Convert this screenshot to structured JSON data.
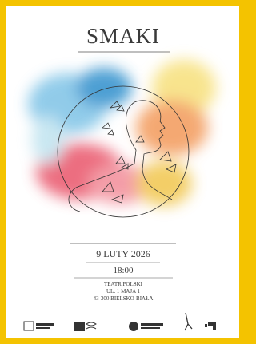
{
  "poster": {
    "title": "SMAKI",
    "date": "9 LUTY 2026",
    "time": "18:00",
    "venue": {
      "name": "TEATR POLSKI",
      "street": "UL. 1 MAJA 1",
      "city": "43-300 BIELSKO-BIAŁA"
    }
  }
}
